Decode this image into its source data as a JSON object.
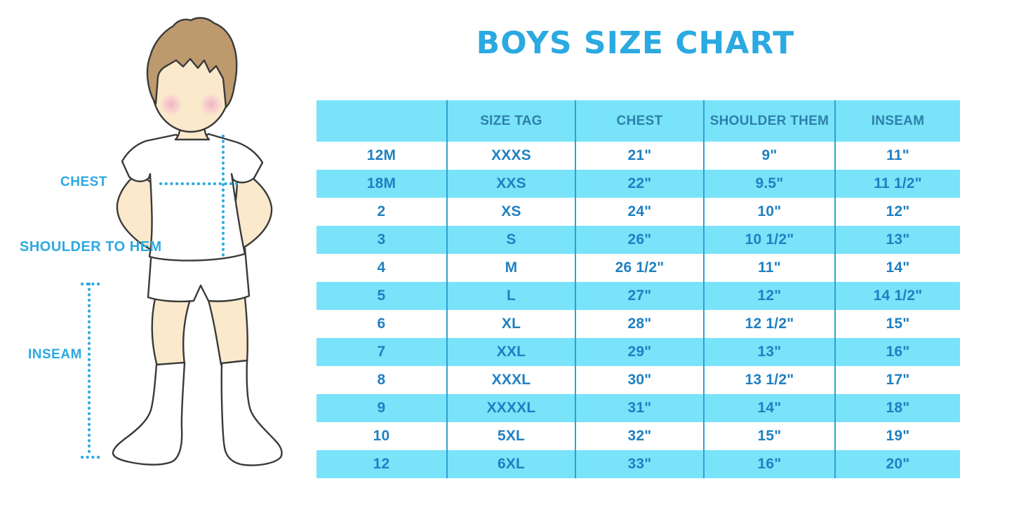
{
  "title": "BOYS SIZE CHART",
  "illustration": {
    "name": "boy-measurement-figure",
    "labels": {
      "chest": "CHEST",
      "shoulder_to_hem": "SHOULDER TO HEM",
      "inseam": "INSEAM"
    }
  },
  "chart_data": {
    "type": "table",
    "title": "BOYS SIZE CHART",
    "columns": [
      "",
      "SIZE TAG",
      "CHEST",
      "SHOULDER THEM",
      "INSEAM"
    ],
    "rows": [
      [
        "12M",
        "XXXS",
        "21\"",
        "9\"",
        "11\""
      ],
      [
        "18M",
        "XXS",
        "22\"",
        "9.5\"",
        "11 1/2\""
      ],
      [
        "2",
        "XS",
        "24\"",
        "10\"",
        "12\""
      ],
      [
        "3",
        "S",
        "26\"",
        "10 1/2\"",
        "13\""
      ],
      [
        "4",
        "M",
        "26 1/2\"",
        "11\"",
        "14\""
      ],
      [
        "5",
        "L",
        "27\"",
        "12\"",
        "14 1/2\""
      ],
      [
        "6",
        "XL",
        "28\"",
        "12 1/2\"",
        "15\""
      ],
      [
        "7",
        "XXL",
        "29\"",
        "13\"",
        "16\""
      ],
      [
        "8",
        "XXXL",
        "30\"",
        "13 1/2\"",
        "17\""
      ],
      [
        "9",
        "XXXXL",
        "31\"",
        "14\"",
        "18\""
      ],
      [
        "10",
        "5XL",
        "32\"",
        "15\"",
        "19\""
      ],
      [
        "12",
        "6XL",
        "33\"",
        "16\"",
        "20\""
      ]
    ],
    "layout": {
      "striped": true,
      "stripe_colors": [
        "#FFFFFF",
        "#79E3FA"
      ],
      "header_background": "#79E3FA",
      "grid": "vertical column dividers only"
    }
  },
  "colors": {
    "accent_blue": "#2BA9E1",
    "table_header_bg": "#79E3FA",
    "table_stripe_bg": "#79E3FA",
    "table_header_text": "#2E7FA9",
    "table_cell_text": "#1F80C2",
    "column_divider": "#2BA2D2",
    "measure_line": "#29ABE2",
    "skin": "#FBE9CB",
    "hair": "#BD9A6E",
    "blush": "#F2AEBE",
    "outline": "#3A3A3A"
  }
}
